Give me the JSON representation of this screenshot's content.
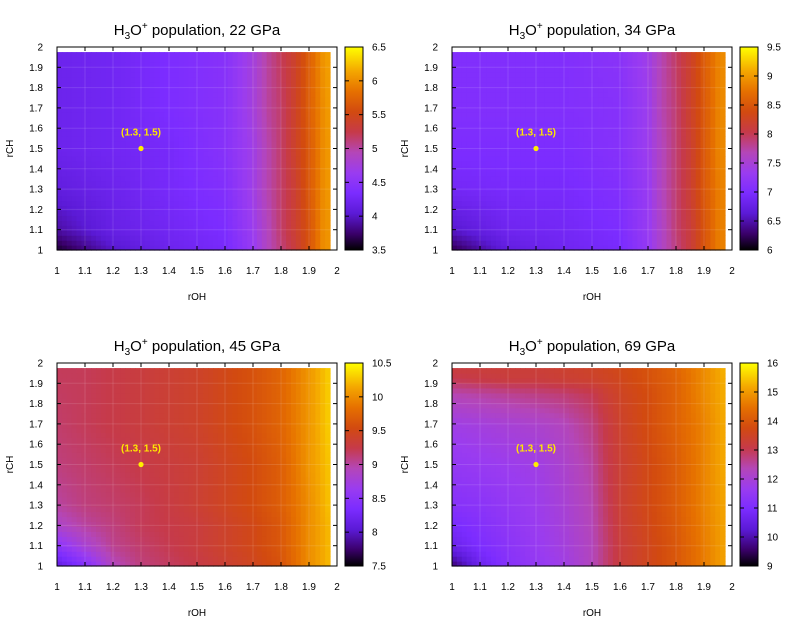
{
  "chart_data": [
    {
      "type": "heatmap",
      "title_main": "H",
      "title_sub": "3",
      "title_mid": "O",
      "title_sup": "+",
      "title_rest": " population, 22 GPa",
      "xlabel": "rOH",
      "ylabel": "rCH",
      "xlim": [
        1,
        2
      ],
      "ylim": [
        1,
        2
      ],
      "xticks": [
        "1",
        "1.1",
        "1.2",
        "1.3",
        "1.4",
        "1.5",
        "1.6",
        "1.7",
        "1.8",
        "1.9",
        "2"
      ],
      "yticks": [
        "1",
        "1.1",
        "1.2",
        "1.3",
        "1.4",
        "1.5",
        "1.6",
        "1.7",
        "1.8",
        "1.9",
        "2"
      ],
      "colorbar_range": [
        3.5,
        6.5
      ],
      "colorbar_ticks": [
        "3.5",
        "4",
        "4.5",
        "5",
        "5.5",
        "6",
        "6.5"
      ],
      "marker": {
        "x": 1.3,
        "y": 1.5,
        "label": "(1.3, 1.5)"
      },
      "grid_x": [
        1.0,
        1.2,
        1.4,
        1.6,
        1.7,
        1.75,
        1.8,
        1.85,
        1.9,
        1.95,
        2.0
      ],
      "grid_y": [
        1.0,
        1.1,
        1.3,
        1.5,
        1.7,
        2.0
      ],
      "z": [
        [
          3.6,
          4.0,
          4.2,
          4.3,
          4.6,
          4.9,
          5.1,
          5.3,
          5.6,
          6.0,
          6.1
        ],
        [
          3.9,
          4.15,
          4.25,
          4.35,
          4.65,
          4.9,
          5.15,
          5.35,
          5.6,
          6.0,
          6.1
        ],
        [
          4.1,
          4.2,
          4.3,
          4.4,
          4.7,
          4.95,
          5.15,
          5.35,
          5.65,
          6.0,
          6.15
        ],
        [
          4.2,
          4.25,
          4.3,
          4.45,
          4.7,
          4.95,
          5.15,
          5.4,
          5.65,
          6.0,
          6.15
        ],
        [
          4.2,
          4.25,
          4.35,
          4.45,
          4.75,
          5.0,
          5.15,
          5.4,
          5.7,
          6.0,
          6.2
        ],
        [
          4.2,
          4.25,
          4.35,
          4.45,
          4.75,
          5.0,
          5.2,
          5.4,
          5.7,
          6.05,
          6.2
        ]
      ]
    },
    {
      "type": "heatmap",
      "title_main": "H",
      "title_sub": "3",
      "title_mid": "O",
      "title_sup": "+",
      "title_rest": " population, 34 GPa",
      "xlabel": "rOH",
      "ylabel": "rCH",
      "xlim": [
        1,
        2
      ],
      "ylim": [
        1,
        2
      ],
      "xticks": [
        "1",
        "1.1",
        "1.2",
        "1.3",
        "1.4",
        "1.5",
        "1.6",
        "1.7",
        "1.8",
        "1.9",
        "2"
      ],
      "yticks": [
        "1",
        "1.1",
        "1.2",
        "1.3",
        "1.4",
        "1.5",
        "1.6",
        "1.7",
        "1.8",
        "1.9",
        "2"
      ],
      "colorbar_range": [
        6,
        9.5
      ],
      "colorbar_ticks": [
        "6",
        "6.5",
        "7",
        "7.5",
        "8",
        "8.5",
        "9",
        "9.5"
      ],
      "marker": {
        "x": 1.3,
        "y": 1.5,
        "label": "(1.3, 1.5)"
      },
      "grid_x": [
        1.0,
        1.2,
        1.4,
        1.6,
        1.7,
        1.75,
        1.8,
        1.85,
        1.9,
        1.95,
        2.0
      ],
      "grid_y": [
        1.0,
        1.1,
        1.3,
        1.5,
        1.7,
        2.0
      ],
      "z": [
        [
          6.2,
          6.7,
          6.85,
          6.95,
          7.25,
          7.6,
          7.85,
          8.1,
          8.45,
          8.8,
          8.9
        ],
        [
          6.6,
          6.85,
          6.9,
          7.0,
          7.3,
          7.6,
          7.9,
          8.1,
          8.45,
          8.8,
          8.9
        ],
        [
          6.9,
          6.95,
          6.95,
          7.05,
          7.3,
          7.65,
          7.9,
          8.15,
          8.5,
          8.8,
          8.95
        ],
        [
          7.0,
          7.0,
          7.0,
          7.1,
          7.35,
          7.65,
          7.9,
          8.15,
          8.5,
          8.85,
          8.95
        ],
        [
          7.05,
          7.05,
          7.05,
          7.1,
          7.35,
          7.7,
          7.9,
          8.2,
          8.5,
          8.85,
          9.0
        ],
        [
          7.05,
          7.05,
          7.05,
          7.15,
          7.4,
          7.7,
          7.95,
          8.2,
          8.55,
          8.85,
          9.0
        ]
      ]
    },
    {
      "type": "heatmap",
      "title_main": "H",
      "title_sub": "3",
      "title_mid": "O",
      "title_sup": "+",
      "title_rest": " population, 45 GPa",
      "xlabel": "rOH",
      "ylabel": "rCH",
      "xlim": [
        1,
        2
      ],
      "ylim": [
        1,
        2
      ],
      "xticks": [
        "1",
        "1.1",
        "1.2",
        "1.3",
        "1.4",
        "1.5",
        "1.6",
        "1.7",
        "1.8",
        "1.9",
        "2"
      ],
      "yticks": [
        "1",
        "1.1",
        "1.2",
        "1.3",
        "1.4",
        "1.5",
        "1.6",
        "1.7",
        "1.8",
        "1.9",
        "2"
      ],
      "colorbar_range": [
        7.5,
        10.5
      ],
      "colorbar_ticks": [
        "7.5",
        "8",
        "8.5",
        "9",
        "9.5",
        "10",
        "10.5"
      ],
      "marker": {
        "x": 1.3,
        "y": 1.5,
        "label": "(1.3, 1.5)"
      },
      "grid_x": [
        1.0,
        1.1,
        1.2,
        1.3,
        1.5,
        1.7,
        1.8,
        1.9,
        2.0
      ],
      "grid_y": [
        1.0,
        1.1,
        1.2,
        1.3,
        1.5,
        1.7,
        2.0
      ],
      "z": [
        [
          8.1,
          8.4,
          8.9,
          9.1,
          9.25,
          9.45,
          9.6,
          10.0,
          10.3
        ],
        [
          8.5,
          8.8,
          9.05,
          9.15,
          9.3,
          9.5,
          9.65,
          10.0,
          10.3
        ],
        [
          8.85,
          9.0,
          9.1,
          9.2,
          9.3,
          9.5,
          9.65,
          10.0,
          10.3
        ],
        [
          9.0,
          9.1,
          9.15,
          9.2,
          9.35,
          9.55,
          9.7,
          10.0,
          10.35
        ],
        [
          9.1,
          9.15,
          9.2,
          9.25,
          9.35,
          9.55,
          9.7,
          10.05,
          10.35
        ],
        [
          9.15,
          9.2,
          9.25,
          9.3,
          9.4,
          9.6,
          9.75,
          10.05,
          10.4
        ],
        [
          9.2,
          9.2,
          9.25,
          9.3,
          9.4,
          9.6,
          9.75,
          10.05,
          10.4
        ]
      ]
    },
    {
      "type": "heatmap",
      "title_main": "H",
      "title_sub": "3",
      "title_mid": "O",
      "title_sup": "+",
      "title_rest": " population, 69 GPa",
      "xlabel": "rOH",
      "ylabel": "rCH",
      "xlim": [
        1,
        2
      ],
      "ylim": [
        1,
        2
      ],
      "xticks": [
        "1",
        "1.1",
        "1.2",
        "1.3",
        "1.4",
        "1.5",
        "1.6",
        "1.7",
        "1.8",
        "1.9",
        "2"
      ],
      "yticks": [
        "1",
        "1.1",
        "1.2",
        "1.3",
        "1.4",
        "1.5",
        "1.6",
        "1.7",
        "1.8",
        "1.9",
        "2"
      ],
      "colorbar_range": [
        9,
        16
      ],
      "colorbar_ticks": [
        "9",
        "10",
        "11",
        "12",
        "13",
        "14",
        "15",
        "16"
      ],
      "marker": {
        "x": 1.3,
        "y": 1.5,
        "label": "(1.3, 1.5)"
      },
      "grid_x": [
        1.0,
        1.1,
        1.2,
        1.3,
        1.4,
        1.5,
        1.55,
        1.6,
        1.7,
        1.8,
        1.9,
        2.0
      ],
      "grid_y": [
        1.0,
        1.1,
        1.3,
        1.5,
        1.7,
        1.85,
        1.92,
        2.0
      ],
      "z": [
        [
          9.6,
          10.6,
          11.2,
          11.5,
          11.8,
          12.3,
          12.8,
          13.2,
          13.6,
          14.0,
          14.6,
          15.3
        ],
        [
          10.6,
          11.0,
          11.3,
          11.6,
          11.9,
          12.3,
          12.8,
          13.2,
          13.6,
          14.0,
          14.6,
          15.3
        ],
        [
          11.2,
          11.3,
          11.5,
          11.7,
          12.0,
          12.4,
          12.9,
          13.3,
          13.7,
          14.1,
          14.7,
          15.3
        ],
        [
          11.5,
          11.6,
          11.7,
          11.8,
          12.1,
          12.5,
          13.0,
          13.3,
          13.7,
          14.1,
          14.7,
          15.4
        ],
        [
          11.8,
          11.9,
          12.0,
          12.1,
          12.3,
          12.7,
          13.1,
          13.4,
          13.8,
          14.2,
          14.7,
          15.4
        ],
        [
          12.4,
          12.5,
          12.6,
          12.7,
          12.8,
          13.0,
          13.3,
          13.5,
          13.8,
          14.2,
          14.8,
          15.4
        ],
        [
          13.0,
          13.1,
          13.2,
          13.2,
          13.3,
          13.4,
          13.5,
          13.6,
          13.9,
          14.2,
          14.8,
          15.4
        ],
        [
          13.3,
          13.3,
          13.3,
          13.3,
          13.4,
          13.5,
          13.6,
          13.7,
          13.9,
          14.3,
          14.8,
          15.5
        ]
      ]
    }
  ]
}
